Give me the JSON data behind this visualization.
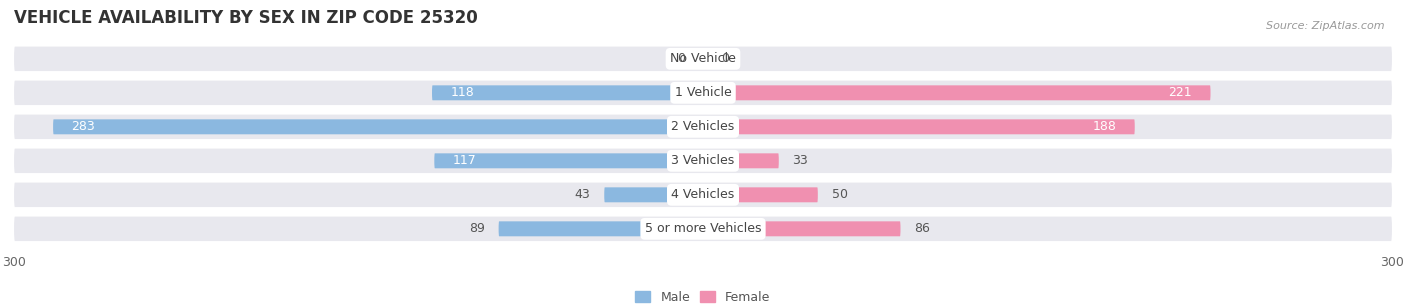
{
  "title": "VEHICLE AVAILABILITY BY SEX IN ZIP CODE 25320",
  "source": "Source: ZipAtlas.com",
  "categories": [
    "No Vehicle",
    "1 Vehicle",
    "2 Vehicles",
    "3 Vehicles",
    "4 Vehicles",
    "5 or more Vehicles"
  ],
  "male_values": [
    0,
    118,
    283,
    117,
    43,
    89
  ],
  "female_values": [
    0,
    221,
    188,
    33,
    50,
    86
  ],
  "male_color": "#8bb8e0",
  "female_color": "#f090b0",
  "male_label": "Male",
  "female_label": "Female",
  "xlim": [
    -300,
    300
  ],
  "background_color": "#ffffff",
  "row_bg_color": "#e8e8ee",
  "title_fontsize": 12,
  "source_fontsize": 8,
  "label_fontsize": 9,
  "category_fontsize": 9
}
